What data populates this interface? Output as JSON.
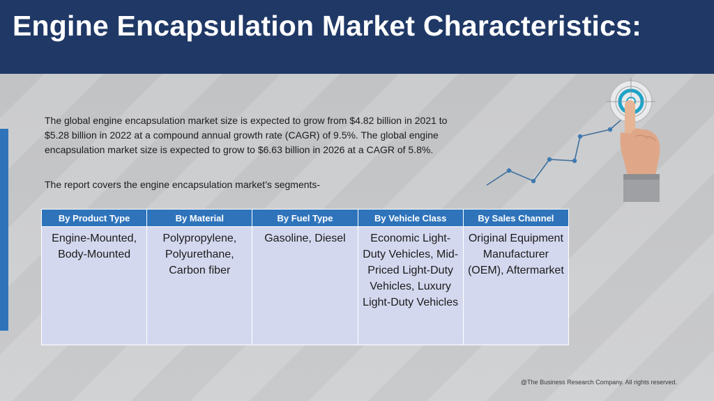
{
  "header": {
    "title": "Engine Encapsulation Market Characteristics:"
  },
  "intro": {
    "paragraph": "The global engine encapsulation market size is expected to grow from $4.82 billion in 2021 to $5.28 billion in 2022 at a compound annual growth rate (CAGR) of 9.5%. The global engine encapsulation market size is expected to grow to $6.63 billion in 2026 at a CAGR of 5.8%.",
    "segments_note": "The report covers the engine encapsulation market’s segments-"
  },
  "illustration": {
    "icons": [
      "line-trend-icon",
      "target-icon",
      "hand-pointing-icon"
    ]
  },
  "table": {
    "headers": [
      "By Product Type",
      "By Material",
      "By Fuel Type",
      "By Vehicle Class",
      "By Sales Channel"
    ],
    "cells": [
      "Engine-Mounted, Body-Mounted",
      "Polypropylene, Polyurethane, Carbon fiber",
      "Gasoline, Diesel",
      "Economic Light-Duty Vehicles, Mid-Priced Light-Duty Vehicles, Luxury Light-Duty Vehicles",
      "Original Equipment Manufacturer (OEM), Aftermarket"
    ]
  },
  "footer": {
    "copyright": "@The Business Research Company. All rights reserved."
  },
  "colors": {
    "header_bg": "#1f3866",
    "accent": "#2f74bb",
    "cell_bg": "#d4d8ef",
    "page_bg": "#c9cacc"
  }
}
